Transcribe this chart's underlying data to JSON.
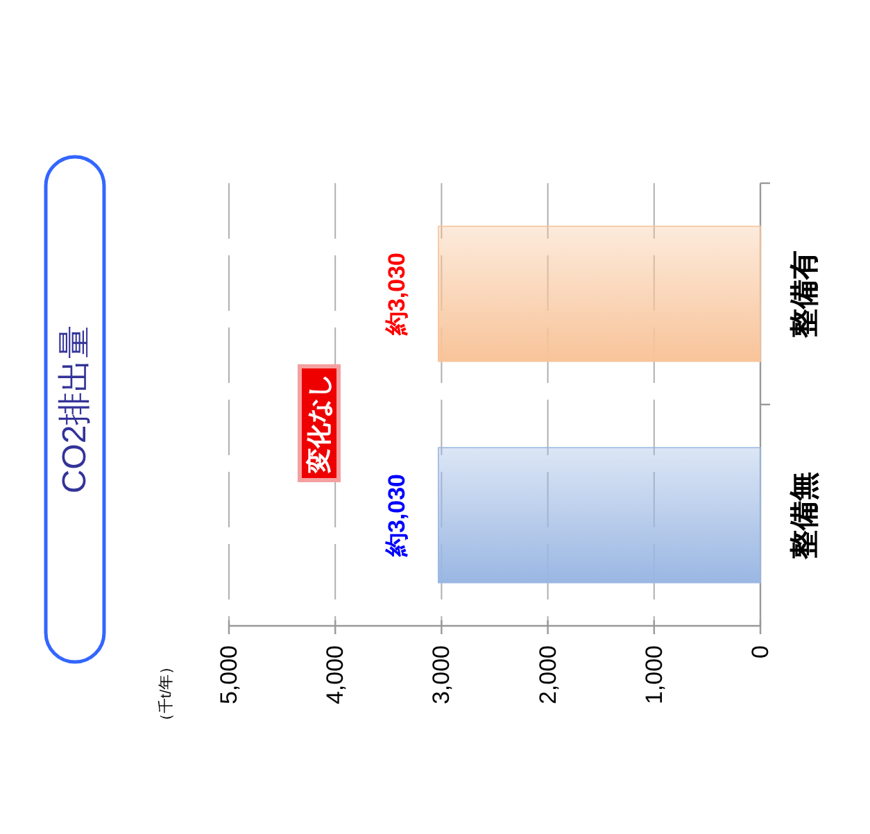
{
  "chart_data": {
    "type": "bar",
    "orientation": "horizontal",
    "title": "CO2排出量",
    "categories": [
      "整備有",
      "整備無"
    ],
    "values": [
      3030,
      3030
    ],
    "colors": [
      "#f8c49a",
      "#9ab7e3"
    ],
    "value_labels": [
      "約3,030",
      "約3,030"
    ],
    "xlim": [
      5000,
      0
    ],
    "xticks": [
      {
        "value": 5000,
        "label": "5,000"
      },
      {
        "value": 4000,
        "label": "4,000"
      },
      {
        "value": 3000,
        "label": "3,000"
      },
      {
        "value": 2000,
        "label": "2,000"
      },
      {
        "value": 1000,
        "label": "1,000"
      },
      {
        "value": 0,
        "label": "0"
      }
    ],
    "grid": "x",
    "annotations": [
      "（千t/年）",
      "変化なし"
    ]
  }
}
